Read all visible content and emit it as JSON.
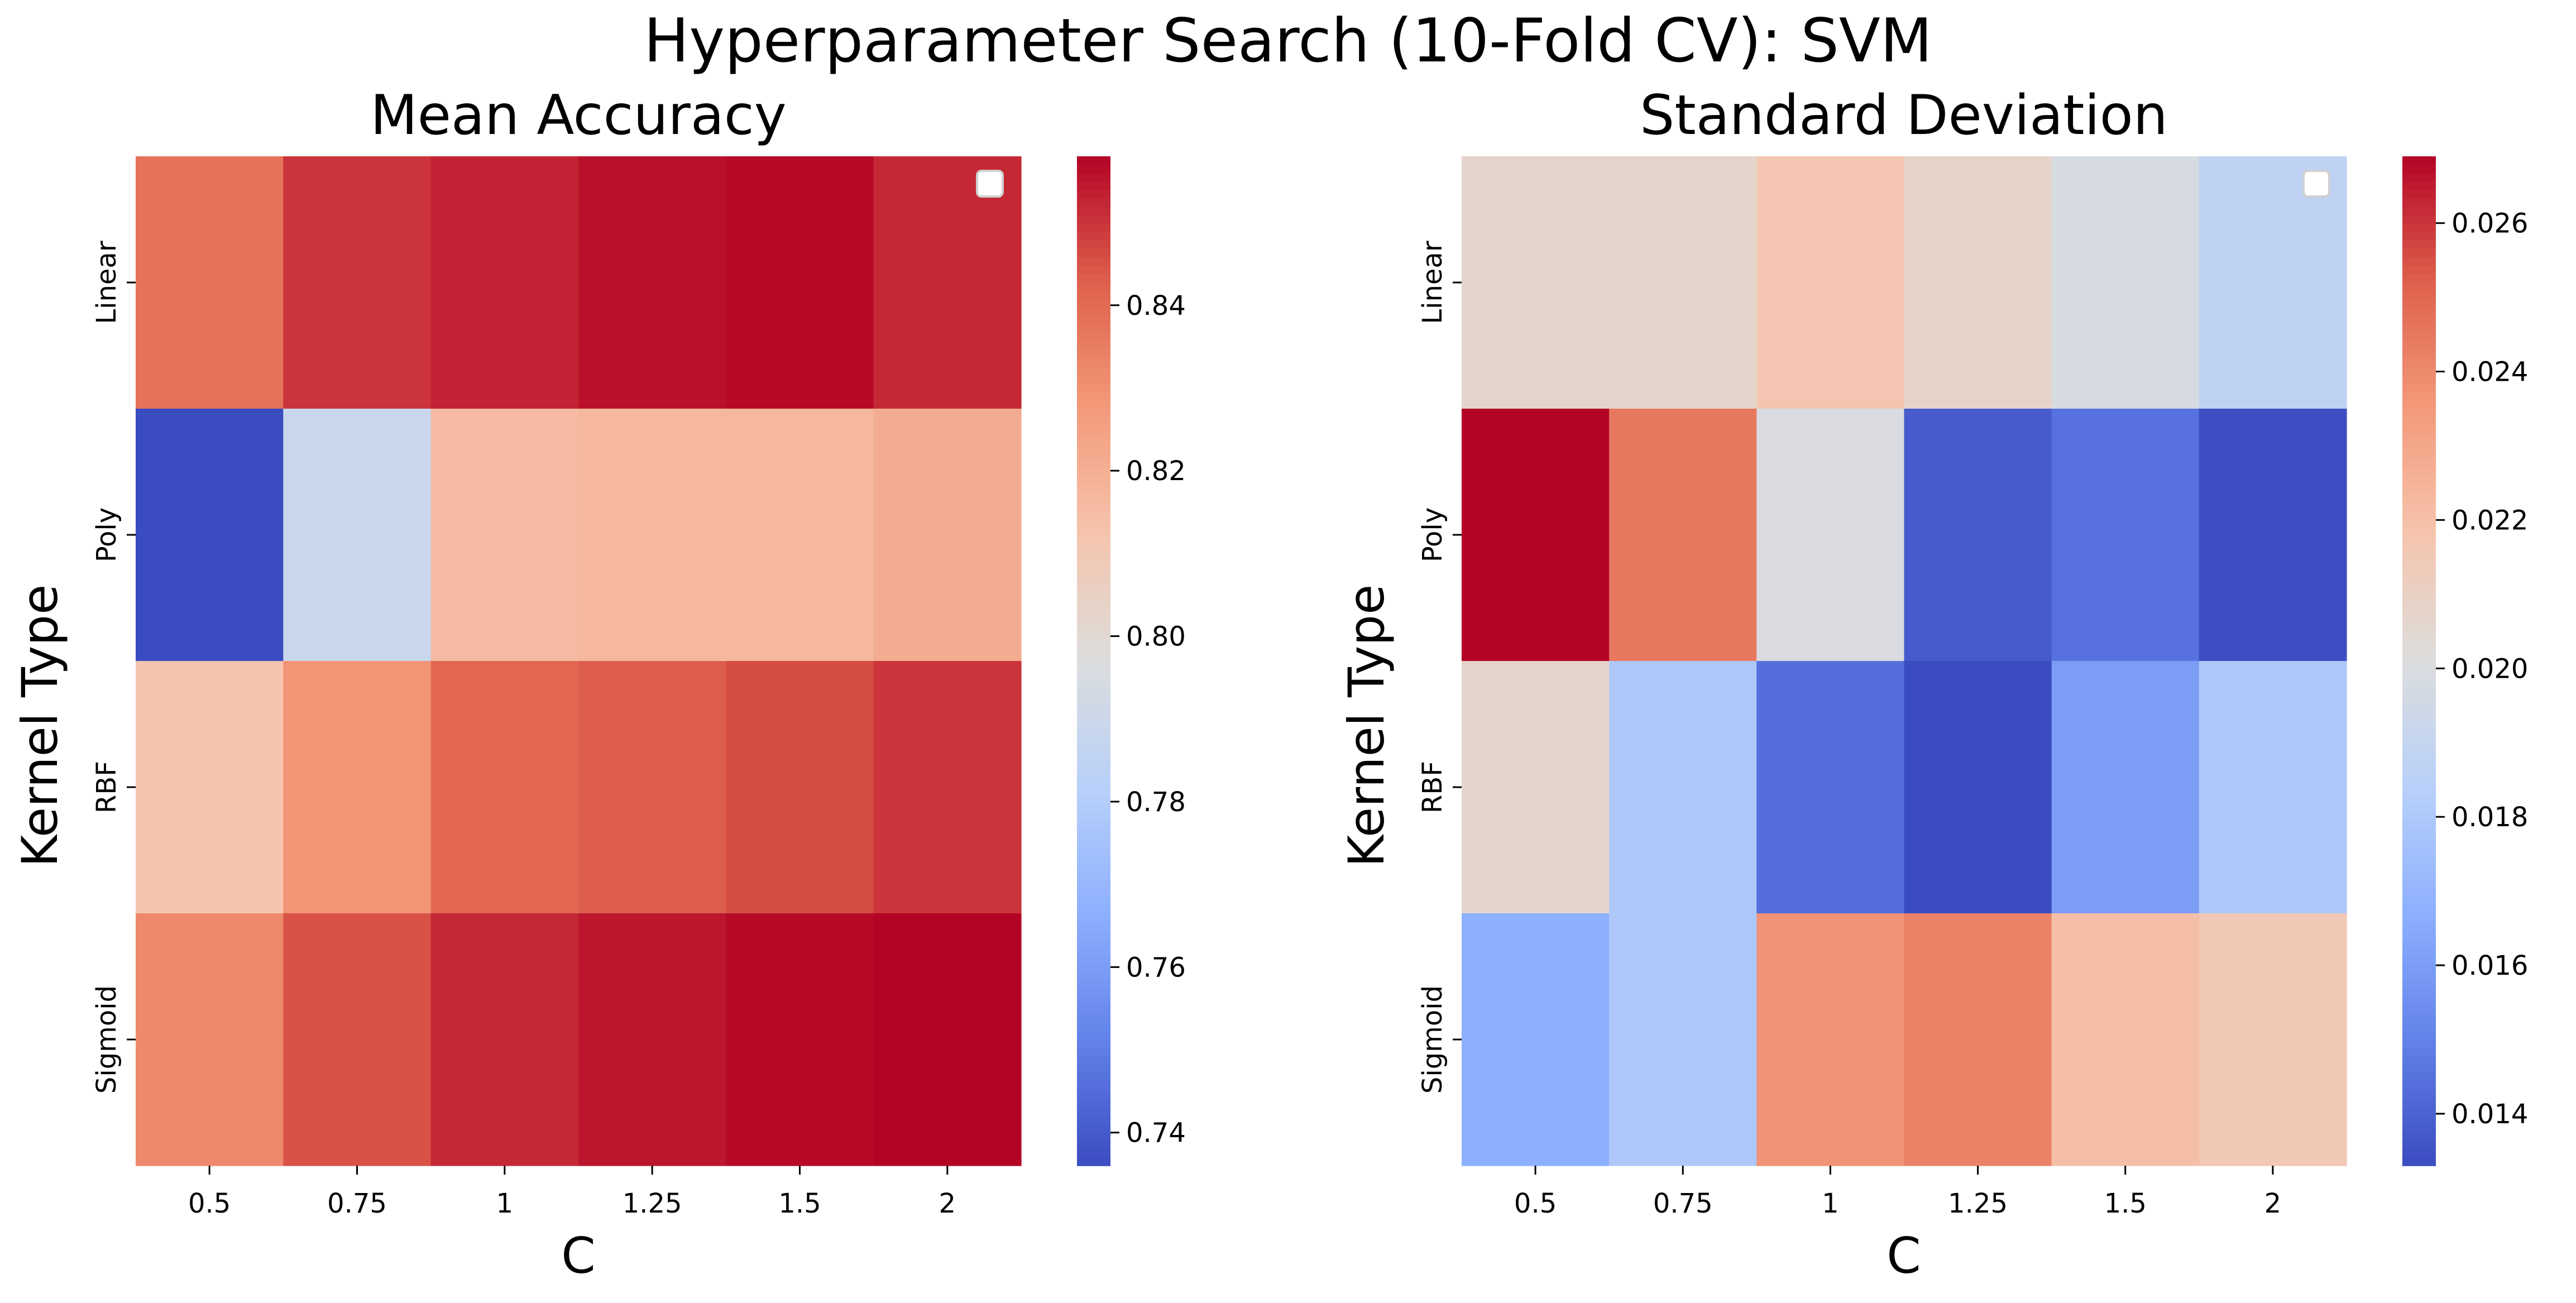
{
  "figure": {
    "title": "Hyperparameter Search (10-Fold CV): SVM"
  },
  "chart_data": [
    {
      "type": "heatmap",
      "title": "Mean Accuracy",
      "xlabel": "C",
      "ylabel": "Kernel Type",
      "x_categories": [
        "0.5",
        "0.75",
        "1",
        "1.25",
        "1.5",
        "2"
      ],
      "y_categories": [
        "Linear",
        "Poly",
        "RBF",
        "Sigmoid"
      ],
      "values": [
        [
          0.838,
          0.85,
          0.853,
          0.856,
          0.857,
          0.852
        ],
        [
          0.736,
          0.789,
          0.816,
          0.817,
          0.817,
          0.821
        ],
        [
          0.812,
          0.829,
          0.841,
          0.843,
          0.846,
          0.85
        ],
        [
          0.832,
          0.845,
          0.852,
          0.855,
          0.857,
          0.858
        ]
      ],
      "colormap": "coolwarm",
      "vmin": 0.736,
      "vmax": 0.858,
      "colorbar_ticks": [
        "0.74",
        "0.76",
        "0.78",
        "0.80",
        "0.82",
        "0.84"
      ],
      "colorbar_tick_values": [
        0.74,
        0.76,
        0.78,
        0.8,
        0.82,
        0.84
      ],
      "legend": "empty box, upper right"
    },
    {
      "type": "heatmap",
      "title": "Standard Deviation",
      "xlabel": "C",
      "ylabel": "Kernel Type",
      "x_categories": [
        "0.5",
        "0.75",
        "1",
        "1.25",
        "1.5",
        "2"
      ],
      "y_categories": [
        "Linear",
        "Poly",
        "RBF",
        "Sigmoid"
      ],
      "values": [
        [
          0.0207,
          0.0207,
          0.0217,
          0.0208,
          0.0198,
          0.0187
        ],
        [
          0.0269,
          0.0245,
          0.0199,
          0.0138,
          0.0145,
          0.0134
        ],
        [
          0.0207,
          0.018,
          0.0144,
          0.0133,
          0.016,
          0.018
        ],
        [
          0.0167,
          0.018,
          0.0237,
          0.0242,
          0.022,
          0.0215
        ]
      ],
      "colormap": "coolwarm",
      "vmin": 0.0133,
      "vmax": 0.0269,
      "colorbar_ticks": [
        "0.014",
        "0.016",
        "0.018",
        "0.020",
        "0.022",
        "0.024",
        "0.026"
      ],
      "colorbar_tick_values": [
        0.014,
        0.016,
        0.018,
        0.02,
        0.022,
        0.024,
        0.026
      ],
      "legend": "empty box, upper right"
    }
  ]
}
